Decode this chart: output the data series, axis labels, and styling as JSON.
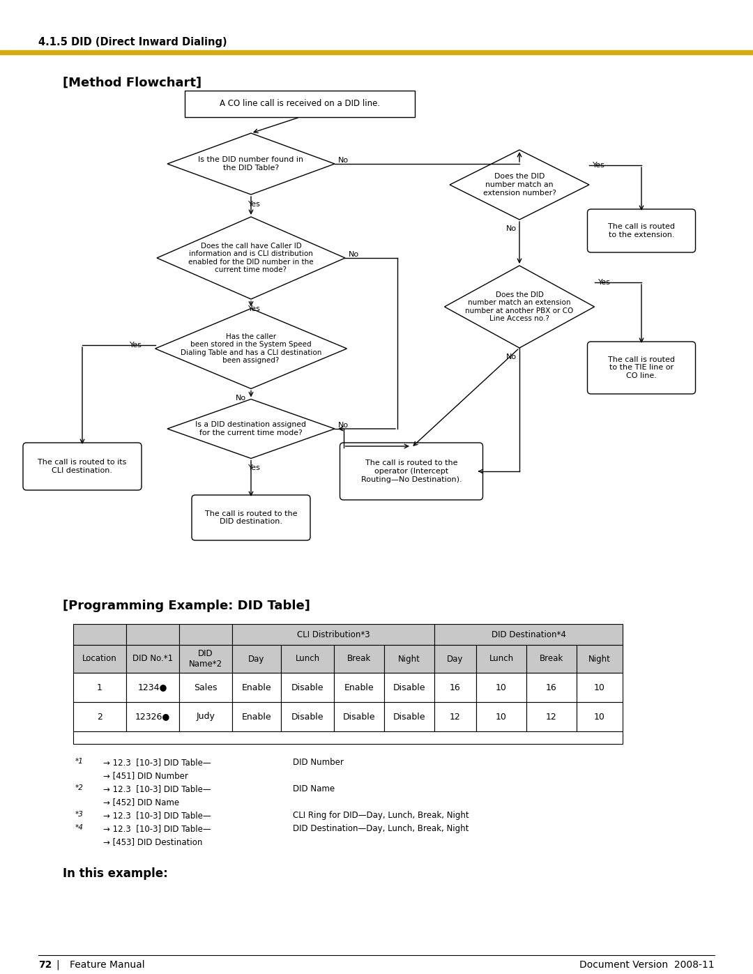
{
  "page_title": "4.1.5 DID (Direct Inward Dialing)",
  "gold_bar_color": "#D4AC0D",
  "section1_title": "[Method Flowchart]",
  "section2_title": "[Programming Example: DID Table]",
  "section3_title": "In this example:",
  "bg_color": "#ffffff",
  "table_header_bg": "#c8c8c8",
  "table_border": "#000000",
  "box1_text": "A CO line call is received on a DID line.",
  "d1_text": "Is the DID number found in\nthe DID Table?",
  "d2_text": "Does the call have Caller ID\ninformation and is CLI distribution\nenabled for the DID number in the\ncurrent time mode?",
  "d3_text": "Has the caller\nbeen stored in the System Speed\nDialing Table and has a CLI destination\nbeen assigned?",
  "d4_text": "Is a DID destination assigned\nfor the current time mode?",
  "d5_text": "Does the DID\nnumber match an\nextension number?",
  "d6_text": "Does the DID\nnumber match an extension\nnumber at another PBX or CO\nLine Access no.?",
  "box_cli_text": "The call is routed to its\nCLI destination.",
  "box_did_text": "The call is routed to the\nDID destination.",
  "box_op_text": "The call is routed to the\noperator (Intercept\nRouting—No Destination).",
  "box_ext_text": "The call is routed\nto the extension.",
  "box_tie_text": "The call is routed\nto the TIE line or\nCO line.",
  "note1a": "→ 12.3  [10-3] DID Table—",
  "note1b": "DID Number",
  "note1c": "→ [451] DID Number",
  "note2a": "→ 12.3  [10-3] DID Table—",
  "note2b": "DID Name",
  "note2c": "→ [452] DID Name",
  "note3a": "→ 12.3  [10-3] DID Table—",
  "note3b": "CLI Ring for DID—Day, Lunch, Break, Night",
  "note4a": "→ 12.3  [10-3] DID Table—",
  "note4b": "DID Destination—Day, Lunch, Break, Night",
  "note4c": "→ [453] DID Destination",
  "table_row1": [
    "1",
    "1234●",
    "Sales",
    "Enable",
    "Disable",
    "Enable",
    "Disable",
    "16",
    "10",
    "16",
    "10"
  ],
  "table_row2": [
    "2",
    "12326●",
    "Judy",
    "Enable",
    "Disable",
    "Disable",
    "Disable",
    "12",
    "10",
    "12",
    "10"
  ]
}
